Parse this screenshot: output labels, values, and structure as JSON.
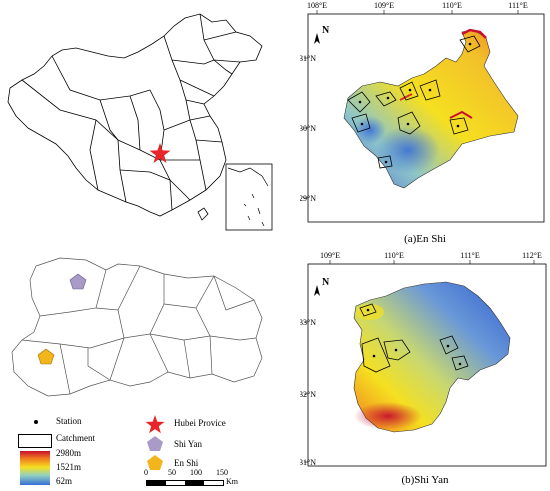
{
  "top_map": {
    "lon_ticks": [
      "108°E",
      "109°E",
      "110°E",
      "111°E"
    ],
    "lat_ticks": [
      "31°N",
      "30°N",
      "29°N"
    ],
    "north_label": "N",
    "caption": "(a)En Shi"
  },
  "bottom_map": {
    "lon_ticks": [
      "109°E",
      "110°E",
      "111°E",
      "112°E"
    ],
    "lat_ticks": [
      "33°N",
      "32°N",
      "31°N"
    ],
    "north_label": "N",
    "caption": "(b)Shi Yan"
  },
  "legend": {
    "station": "Station",
    "catchment": "Catchment",
    "elev_high": "2980m",
    "elev_mid": "1521m",
    "elev_low": "62m",
    "hubei": "Hubei Provice",
    "shiyan": "Shi Yan",
    "enshi": "En Shi",
    "scale_ticks": [
      "0",
      "50",
      "100",
      "150"
    ],
    "scale_unit": "Km"
  },
  "colors": {
    "star": "#e8262a",
    "shiyan_marker": "#a89bc8",
    "enshi_marker": "#f2b51c",
    "elev_high": "#c8102e",
    "elev_mid": "#f5e020",
    "elev_low": "#3a6fd8"
  }
}
